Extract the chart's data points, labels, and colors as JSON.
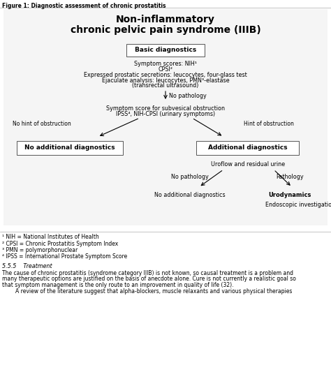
{
  "figure_title": "Figure 1: Diagnostic assessment of chronic prostatitis",
  "main_title_line1": "Non-inflammatory",
  "main_title_line2": "chronic pelvic pain syndrome (IIIB)",
  "bg_color": "#ffffff",
  "footnotes": [
    "¹ NIH = National Institutes of Health",
    "² CPSI = Chronic Prostatitis Symptom Index",
    "³ PMN = polymorphonuclear",
    "⁴ IPSS = International Prostate Symptom Score"
  ],
  "section_title": "5.5.5    Treatment",
  "section_text_line1": "The cause of chronic prostatitis (syndrome category IIIB) is not known, so causal treatment is a problem and",
  "section_text_line2": "many therapeutic options are justified on the basis of anecdote alone. Cure is not currently a realistic goal so",
  "section_text_line3": "that symptom management is the only route to an improvement in quality of life (32).",
  "section_text_line4": "        A review of the literature suggest that alpha-blockers, muscle relaxants and various physical therapies"
}
